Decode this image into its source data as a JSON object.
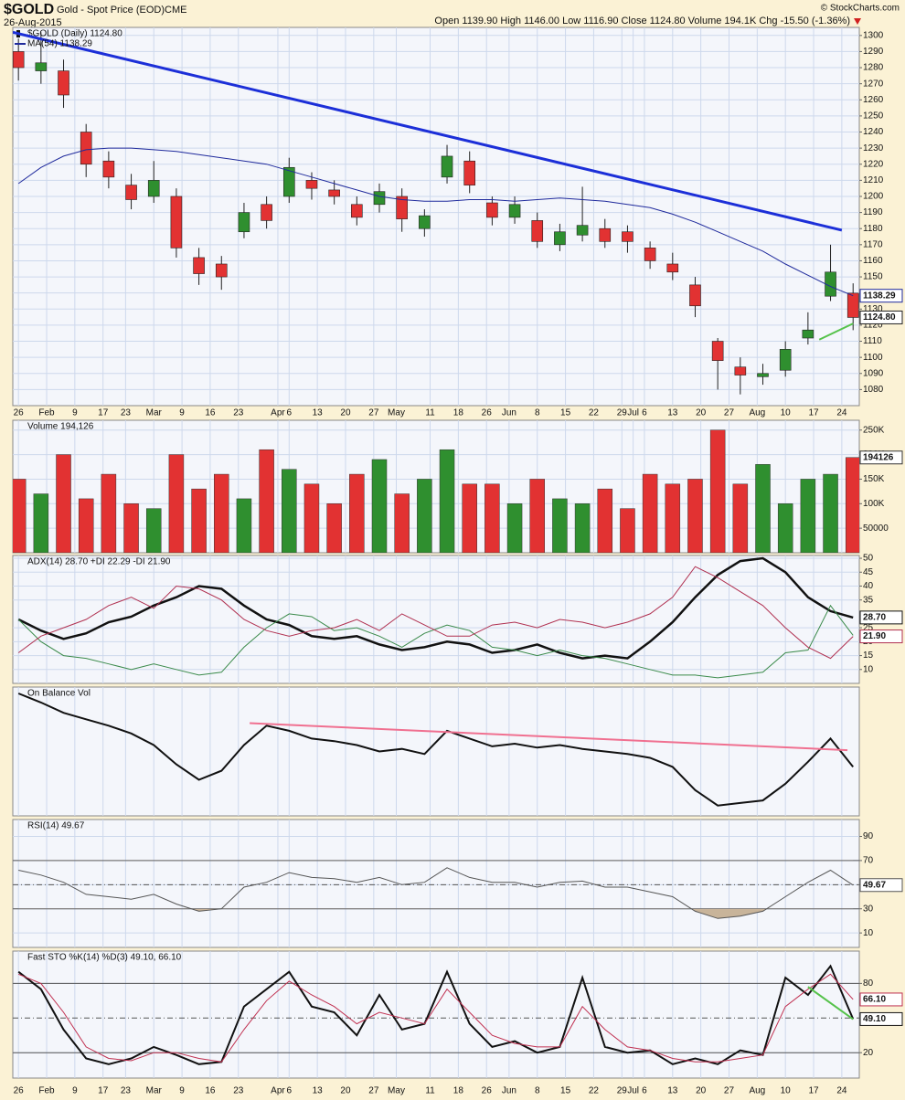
{
  "chart_data": [
    {
      "type": "candlestick",
      "title": "$GOLD",
      "subtitle": "Gold - Spot Price (EOD)",
      "exchange": "CME",
      "date": "26-Aug-2015",
      "credit": "© StockCharts.com",
      "quote": "Open 1139.90 High 1146.00 Low 1116.90 Close 1124.80 Volume 194.1K Chg -15.50 (-1.36%)",
      "legend": "$GOLD (Daily) 1124.80",
      "close_label": "1124.80",
      "x": [
        0,
        4,
        8,
        12,
        16,
        20,
        24,
        28,
        32,
        36,
        40,
        44,
        48,
        52,
        56,
        60,
        64,
        68,
        72,
        76,
        80,
        84,
        88,
        92,
        96,
        100,
        104,
        108,
        112,
        116,
        120,
        124,
        128,
        132,
        136,
        140,
        144,
        148
      ],
      "xlim": [
        -1,
        149.1
      ],
      "xticks": [
        {
          "value": 0,
          "label": "26"
        },
        {
          "value": 5,
          "label": "Feb"
        },
        {
          "value": 10,
          "label": "9"
        },
        {
          "value": 15,
          "label": "17"
        },
        {
          "value": 19,
          "label": "23"
        },
        {
          "value": 24,
          "label": "Mar"
        },
        {
          "value": 29,
          "label": "9"
        },
        {
          "value": 34,
          "label": "16"
        },
        {
          "value": 39,
          "label": "23"
        },
        {
          "value": 46,
          "label": "Apr"
        },
        {
          "value": 48,
          "label": "6"
        },
        {
          "value": 53,
          "label": "13"
        },
        {
          "value": 58,
          "label": "20"
        },
        {
          "value": 63,
          "label": "27"
        },
        {
          "value": 67,
          "label": "May"
        },
        {
          "value": 73,
          "label": "11"
        },
        {
          "value": 78,
          "label": "18"
        },
        {
          "value": 83,
          "label": "26"
        },
        {
          "value": 87,
          "label": "Jun"
        },
        {
          "value": 92,
          "label": "8"
        },
        {
          "value": 97,
          "label": "15"
        },
        {
          "value": 102,
          "label": "22"
        },
        {
          "value": 107,
          "label": "29"
        },
        {
          "value": 109,
          "label": "Jul"
        },
        {
          "value": 111,
          "label": "6"
        },
        {
          "value": 116,
          "label": "13"
        },
        {
          "value": 121,
          "label": "20"
        },
        {
          "value": 126,
          "label": "27"
        },
        {
          "value": 131,
          "label": "Aug"
        },
        {
          "value": 136,
          "label": "10"
        },
        {
          "value": 141,
          "label": "17"
        },
        {
          "value": 146,
          "label": "24"
        }
      ],
      "open": [
        1290,
        1278,
        1278,
        1240,
        1222,
        1207,
        1200,
        1200,
        1162,
        1158,
        1178,
        1195,
        1200,
        1210,
        1204,
        1195,
        1195,
        1200,
        1180,
        1212,
        1222,
        1196,
        1187,
        1185,
        1170,
        1176,
        1180,
        1178,
        1168,
        1158,
        1145,
        1110,
        1094,
        1088,
        1092,
        1112,
        1138,
        1139.9
      ],
      "high": [
        1298,
        1302,
        1285,
        1245,
        1228,
        1214,
        1222,
        1205,
        1168,
        1163,
        1196,
        1200,
        1224,
        1215,
        1210,
        1200,
        1208,
        1205,
        1192,
        1232,
        1228,
        1200,
        1200,
        1190,
        1183,
        1206,
        1186,
        1182,
        1172,
        1165,
        1150,
        1112,
        1100,
        1096,
        1110,
        1128,
        1170,
        1146
      ],
      "low": [
        1272,
        1270,
        1255,
        1212,
        1205,
        1192,
        1196,
        1162,
        1145,
        1142,
        1174,
        1180,
        1196,
        1198,
        1195,
        1182,
        1190,
        1178,
        1175,
        1208,
        1202,
        1182,
        1183,
        1168,
        1166,
        1172,
        1168,
        1165,
        1155,
        1148,
        1125,
        1080,
        1077,
        1083,
        1088,
        1108,
        1135,
        1116.9
      ],
      "close": [
        1280,
        1283,
        1263,
        1220,
        1212,
        1198,
        1210,
        1168,
        1152,
        1150,
        1190,
        1185,
        1218,
        1205,
        1200,
        1187,
        1203,
        1186,
        1188,
        1225,
        1207,
        1187,
        1195,
        1172,
        1178,
        1182,
        1172,
        1172,
        1160,
        1153,
        1132,
        1098,
        1089,
        1090,
        1105,
        1117,
        1153,
        1124.8
      ],
      "up_color": "#2f8f2f",
      "down_color": "#e23232",
      "ma": {
        "name": "MA(54) 1138.29",
        "color": "#1f2a9c",
        "last_label": "1138.29",
        "values": [
          1208,
          1218,
          1225,
          1229,
          1230,
          1230,
          1229,
          1228,
          1226,
          1224,
          1222,
          1220,
          1216,
          1212,
          1208,
          1204,
          1200,
          1198,
          1197,
          1197,
          1198,
          1198,
          1197,
          1198,
          1199,
          1198,
          1197,
          1195,
          1193,
          1189,
          1184,
          1178,
          1172,
          1166,
          1158,
          1151,
          1144,
          1138.29
        ]
      },
      "trendlines": [
        {
          "color": "#1c2fd8",
          "x": [
            -1,
            146
          ],
          "y": [
            1302,
            1179
          ]
        },
        {
          "color": "#55c24a",
          "x": [
            142,
            148
          ],
          "y": [
            1111,
            1121
          ]
        }
      ],
      "ylim": [
        1070,
        1305
      ],
      "yticks": [
        1080,
        1090,
        1100,
        1110,
        1120,
        1130,
        1140,
        1150,
        1160,
        1170,
        1180,
        1190,
        1200,
        1210,
        1220,
        1230,
        1240,
        1250,
        1260,
        1270,
        1280,
        1290,
        1300
      ],
      "grid": true
    },
    {
      "type": "bar",
      "title": "Volume 194,126",
      "last_label": "194126",
      "values": [
        150000,
        120000,
        200000,
        110000,
        160000,
        100000,
        90000,
        200000,
        130000,
        160000,
        110000,
        210000,
        170000,
        140000,
        100000,
        160000,
        190000,
        120000,
        150000,
        210000,
        140000,
        140000,
        100000,
        150000,
        110000,
        100000,
        130000,
        90000,
        160000,
        140000,
        150000,
        250000,
        140000,
        180000,
        100000,
        150000,
        160000,
        194126
      ],
      "ylim": [
        0,
        270000
      ],
      "yticks": [
        50000,
        {
          "value": 100000,
          "label": "100K"
        },
        {
          "value": 150000,
          "label": "150K"
        },
        {
          "value": 200000,
          "label": "200K"
        },
        {
          "value": 250000,
          "label": "250K"
        }
      ],
      "grid": true
    },
    {
      "type": "line",
      "title": "ADX(14) 28.70 +DI 22.29 -DI 21.90",
      "series": [
        {
          "color": "#111111",
          "width": 2.5,
          "last_label": "28.70",
          "values": [
            28,
            24,
            21,
            23,
            27,
            29,
            33,
            36,
            40,
            39,
            33,
            28,
            26,
            22,
            21,
            22,
            19,
            17,
            18,
            20,
            19,
            16,
            17,
            19,
            16,
            14,
            15,
            14,
            20,
            27,
            36,
            44,
            49,
            50,
            45,
            36,
            31,
            28.7
          ]
        },
        {
          "color": "#3a8a4a",
          "width": 1,
          "values": [
            28,
            20,
            15,
            14,
            12,
            10,
            12,
            10,
            8,
            9,
            18,
            25,
            30,
            29,
            24,
            25,
            22,
            18,
            23,
            26,
            24,
            18,
            17,
            15,
            17,
            15,
            14,
            12,
            10,
            8,
            8,
            7,
            8,
            9,
            16,
            17,
            33,
            22.29
          ]
        },
        {
          "color": "#b03050",
          "width": 1,
          "last_label": "21.90",
          "values": [
            16,
            22,
            25,
            28,
            33,
            36,
            32,
            40,
            39,
            35,
            28,
            24,
            22,
            24,
            25,
            28,
            24,
            30,
            26,
            22,
            22,
            26,
            27,
            25,
            28,
            27,
            25,
            27,
            30,
            36,
            47,
            43,
            38,
            33,
            25,
            18,
            14,
            21.9
          ]
        }
      ],
      "ylim": [
        5,
        51
      ],
      "yticks": [
        10,
        15,
        20,
        25,
        35,
        40,
        45,
        50
      ],
      "grid": true
    },
    {
      "type": "line",
      "title": "On Balance Vol",
      "series": [
        {
          "color": "#111111",
          "width": 2,
          "values": [
            95,
            88,
            80,
            75,
            70,
            64,
            55,
            40,
            28,
            35,
            55,
            70,
            66,
            60,
            58,
            55,
            50,
            52,
            48,
            66,
            60,
            54,
            56,
            53,
            55,
            52,
            50,
            48,
            45,
            38,
            20,
            8,
            10,
            12,
            25,
            42,
            60,
            38
          ]
        }
      ],
      "trendlines": [
        {
          "color": "#f07090",
          "x": [
            41,
            147
          ],
          "y": [
            72,
            51
          ]
        }
      ],
      "ylim": [
        0,
        100
      ],
      "grid": true
    },
    {
      "type": "line",
      "title": "RSI(14) 49.67",
      "series": [
        {
          "color": "#555555",
          "width": 1,
          "last_label": "49.67",
          "values": [
            62,
            58,
            52,
            42,
            40,
            38,
            42,
            34,
            28,
            30,
            48,
            52,
            60,
            56,
            55,
            52,
            56,
            50,
            52,
            64,
            56,
            52,
            52,
            48,
            52,
            53,
            48,
            48,
            44,
            40,
            28,
            22,
            24,
            28,
            40,
            52,
            62,
            49.67
          ]
        }
      ],
      "bands": [
        30,
        70
      ],
      "midline": 50,
      "shade_color": "#c8b49a",
      "ylim": [
        -2,
        104
      ],
      "yticks": [
        10,
        30,
        50,
        70,
        90
      ],
      "grid": true
    },
    {
      "type": "line",
      "title": "Fast STO %K(14) %D(3) 49.10, 66.10",
      "series": [
        {
          "color": "#111111",
          "width": 2,
          "last_label": "49.10",
          "values": [
            90,
            75,
            40,
            15,
            10,
            15,
            25,
            18,
            10,
            12,
            60,
            75,
            90,
            60,
            55,
            35,
            70,
            40,
            45,
            90,
            45,
            25,
            30,
            20,
            25,
            85,
            25,
            20,
            22,
            10,
            15,
            10,
            22,
            18,
            85,
            70,
            95,
            49.1
          ]
        },
        {
          "color": "#c03050",
          "width": 1,
          "last_label": "66.10",
          "values": [
            88,
            80,
            55,
            25,
            15,
            13,
            20,
            20,
            15,
            12,
            40,
            65,
            82,
            70,
            60,
            45,
            55,
            50,
            45,
            75,
            55,
            35,
            28,
            25,
            25,
            60,
            40,
            25,
            22,
            15,
            12,
            12,
            15,
            18,
            60,
            75,
            88,
            66.1
          ]
        }
      ],
      "trendlines": [
        {
          "color": "#55c24a",
          "x": [
            140,
            148
          ],
          "y": [
            77,
            49
          ]
        }
      ],
      "bands": [
        20,
        80
      ],
      "midline": 50,
      "ylim": [
        -2,
        108
      ],
      "yticks": [
        20,
        80
      ],
      "grid": true
    }
  ]
}
